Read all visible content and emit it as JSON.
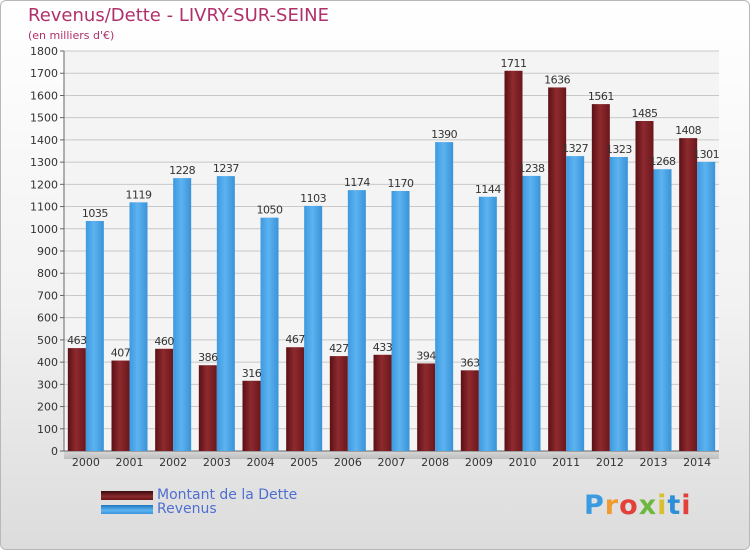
{
  "header": {
    "title": "Revenus/Dette - LIVRY-SUR-SEINE",
    "subtitle": "(en milliers d'€)"
  },
  "chart_data": {
    "type": "bar",
    "categories": [
      "2000",
      "2001",
      "2002",
      "2003",
      "2004",
      "2005",
      "2006",
      "2007",
      "2008",
      "2009",
      "2010",
      "2011",
      "2012",
      "2013",
      "2014"
    ],
    "series": [
      {
        "name": "Montant de la Dette",
        "color": "#7a1e22",
        "values": [
          463,
          407,
          460,
          386,
          316,
          467,
          427,
          433,
          394,
          363,
          1711,
          1636,
          1561,
          1485,
          1408
        ]
      },
      {
        "name": "Revenus",
        "color": "#4aa3e6",
        "values": [
          1035,
          1119,
          1228,
          1237,
          1050,
          1103,
          1174,
          1170,
          1390,
          1144,
          1238,
          1327,
          1323,
          1268,
          1301
        ]
      }
    ],
    "ylim": [
      0,
      1800
    ],
    "ytick_step": 100,
    "yticks": [
      "0",
      "100",
      "200",
      "300",
      "400",
      "500",
      "600",
      "700",
      "800",
      "900",
      "1000",
      "1100",
      "1200",
      "1300",
      "1400",
      "1500",
      "1600",
      "1700",
      "1800"
    ],
    "grid": true,
    "legend_position": "bottom-left"
  },
  "legend": {
    "items": [
      {
        "label": "Montant de la Dette",
        "color": "#7a1e22"
      },
      {
        "label": "Revenus",
        "color": "#4aa3e6"
      }
    ]
  },
  "logo": {
    "letters": [
      "P",
      "r",
      "o",
      "x",
      "i",
      "t",
      "i"
    ],
    "colors": [
      "#3b9be0",
      "#f19a2e",
      "#e2413b",
      "#6fb83f",
      "#d8c130",
      "#2c8fd8",
      "#e2413b"
    ]
  }
}
